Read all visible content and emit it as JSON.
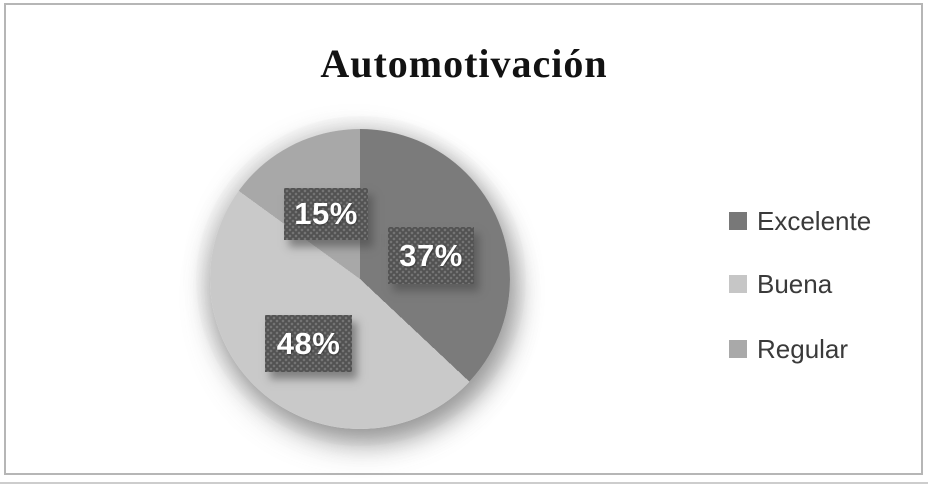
{
  "title": "Automotivación",
  "chart_data": {
    "type": "pie",
    "title": "Automotivación",
    "categories": [
      "Excelente",
      "Buena",
      "Regular"
    ],
    "values": [
      37,
      48,
      15
    ],
    "unit": "%",
    "colors": [
      "#7b7b7b",
      "#c9c9c9",
      "#a8a8a8"
    ],
    "slice_labels": [
      {
        "text": "37%"
      },
      {
        "text": "48%"
      },
      {
        "text": "15%"
      }
    ],
    "label_box_color": "#525252",
    "start_angle_deg": 0,
    "direction": "clockwise",
    "legend_position": "right"
  },
  "legend": {
    "items": [
      {
        "label": "Excelente",
        "color": "#787878"
      },
      {
        "label": "Buena",
        "color": "#c6c6c6"
      },
      {
        "label": "Regular",
        "color": "#a9a9a9"
      }
    ]
  },
  "frame": {
    "border_color": "#b6b6b6",
    "bottom_edge_color": "#cdcdcd"
  }
}
